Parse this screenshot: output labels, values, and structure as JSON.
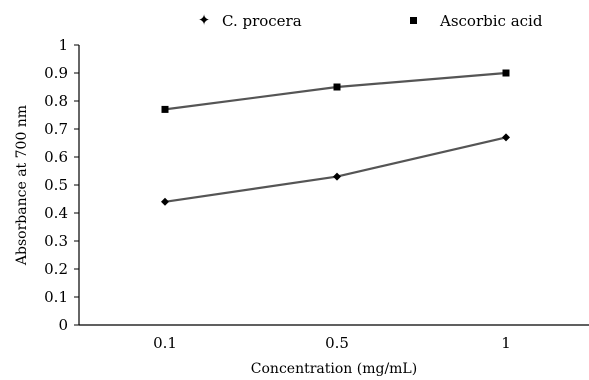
{
  "chart_data": {
    "type": "line",
    "categories": [
      "0.1",
      "0.5",
      "1"
    ],
    "series": [
      {
        "name": "C. procera",
        "marker": "diamond",
        "values": [
          0.44,
          0.53,
          0.67
        ]
      },
      {
        "name": "Ascorbic acid",
        "marker": "square",
        "values": [
          0.77,
          0.85,
          0.9
        ]
      }
    ],
    "xlabel": "Concentration (mg/mL)",
    "ylabel": "Absorbance at 700 nm",
    "ylim": [
      0,
      1
    ],
    "yticks": [
      "0",
      "0.1",
      "0.2",
      "0.3",
      "0.4",
      "0.5",
      "0.6",
      "0.7",
      "0.8",
      "0.9",
      "1"
    ],
    "grid": false,
    "legend_position": "top",
    "line_color": "#555555",
    "marker_color": "#000000"
  }
}
